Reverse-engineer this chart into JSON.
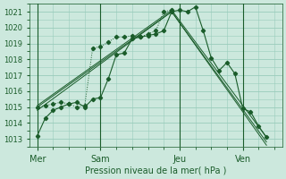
{
  "background_color": "#cce8dd",
  "grid_color": "#99ccbb",
  "line_color": "#1a5c2a",
  "title": "Pression niveau de la mer( hPa )",
  "ylim": [
    1012.5,
    1021.5
  ],
  "yticks": [
    1013,
    1014,
    1015,
    1016,
    1017,
    1018,
    1019,
    1020,
    1021
  ],
  "xtick_labels": [
    "Mer",
    "Sam",
    "Jeu",
    "Ven"
  ],
  "xtick_pos": [
    0,
    4,
    9,
    13
  ],
  "xlim": [
    -0.5,
    15.5
  ],
  "vline_pos": [
    0,
    4,
    9,
    13
  ],
  "font_color": "#1a5c2a",
  "series_main": {
    "x": [
      0,
      0.5,
      1.0,
      1.5,
      2.0,
      2.5,
      3.0,
      3.5,
      4.0,
      4.5,
      5.0,
      5.5,
      6.0,
      6.5,
      7.0,
      7.5,
      8.0,
      8.5,
      9.0,
      9.5,
      10.0,
      10.5,
      11.0,
      11.5,
      12.0,
      12.5,
      13.0,
      13.5,
      14.0,
      14.5
    ],
    "y": [
      1013.2,
      1014.3,
      1014.8,
      1015.0,
      1015.2,
      1015.3,
      1015.0,
      1015.5,
      1015.6,
      1016.8,
      1018.3,
      1018.4,
      1019.3,
      1019.4,
      1019.5,
      1019.6,
      1019.8,
      1021.0,
      1021.1,
      1021.0,
      1021.3,
      1019.8,
      1018.1,
      1017.3,
      1017.8,
      1017.1,
      1014.9,
      1014.7,
      1013.8,
      1013.1
    ]
  },
  "series_dotted": {
    "x": [
      0.0,
      0.5,
      1.0,
      1.5,
      2.0,
      2.5,
      3.0,
      3.5,
      4.0,
      4.5,
      5.0,
      5.5,
      6.0,
      6.5,
      7.0,
      7.5,
      8.0,
      8.5
    ],
    "y": [
      1015.0,
      1015.1,
      1015.2,
      1015.3,
      1015.2,
      1015.0,
      1015.1,
      1018.7,
      1018.8,
      1019.1,
      1019.4,
      1019.4,
      1019.5,
      1019.4,
      1019.6,
      1019.8,
      1021.0,
      1021.1
    ]
  },
  "triangle_lines": [
    {
      "x": [
        0.0,
        8.5,
        14.5
      ],
      "y": [
        1015.1,
        1021.1,
        1013.1
      ]
    },
    {
      "x": [
        0.0,
        8.5,
        14.5
      ],
      "y": [
        1015.0,
        1021.0,
        1012.6
      ]
    },
    {
      "x": [
        0.0,
        8.5,
        14.5
      ],
      "y": [
        1014.8,
        1021.0,
        1012.8
      ]
    }
  ]
}
